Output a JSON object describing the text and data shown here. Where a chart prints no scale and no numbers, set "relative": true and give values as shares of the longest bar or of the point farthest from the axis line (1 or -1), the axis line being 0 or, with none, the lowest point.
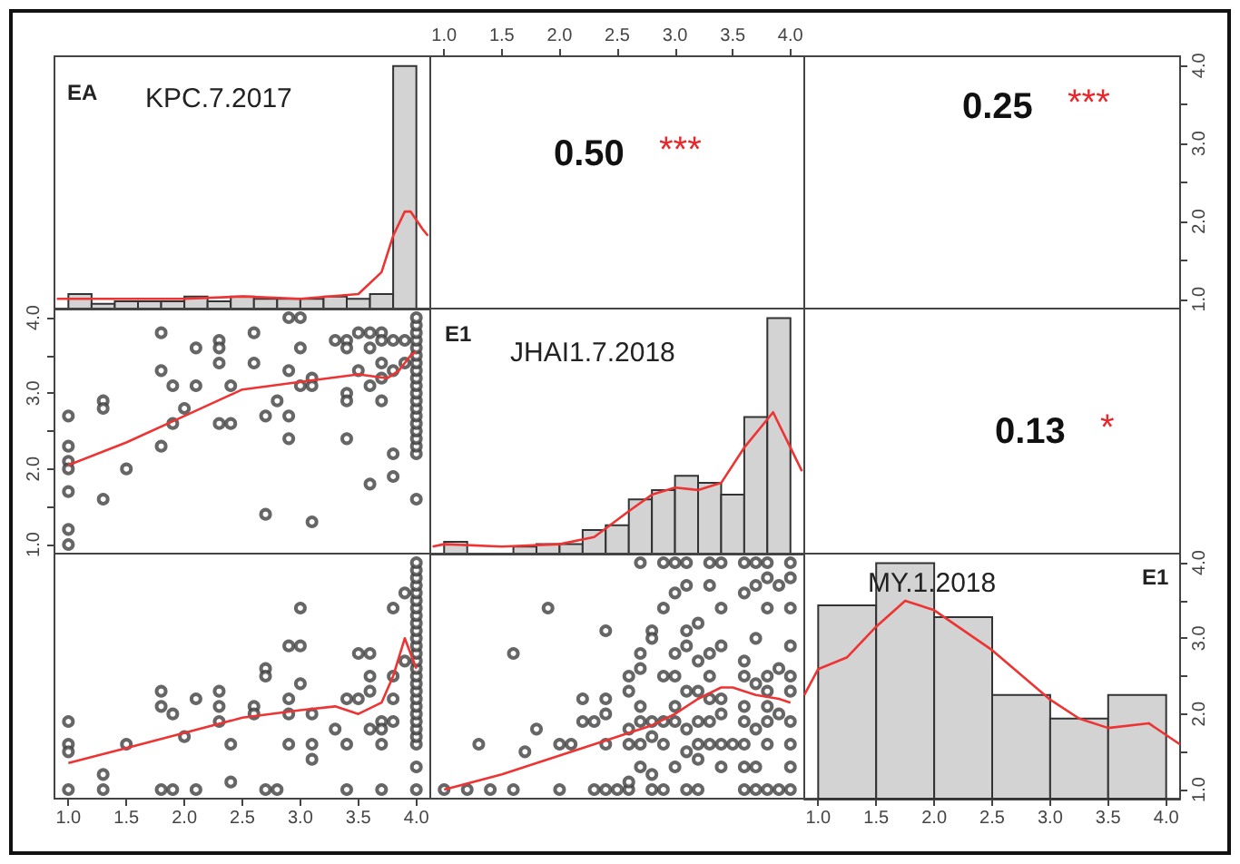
{
  "chart_data": [
    {
      "type": "histogram",
      "title": "KPC.7.2017",
      "subtitle": "EA",
      "relative": true,
      "xlim": [
        0.88,
        4.12
      ],
      "tick_labels": false,
      "series": [
        {
          "type": "histogram",
          "color": "#d3d3d3",
          "bins": [
            1,
            1.2,
            1.4,
            1.6,
            1.8,
            2,
            2.2,
            2.4,
            2.6,
            2.8,
            3,
            3.2,
            3.4,
            3.6,
            3.8,
            4
          ],
          "values": [
            0.06,
            0.02,
            0.03,
            0.03,
            0.03,
            0.05,
            0.03,
            0.05,
            0.04,
            0.04,
            0.04,
            0.05,
            0.04,
            0.06,
            1
          ]
        },
        {
          "type": "line",
          "color": "#ee3333",
          "x": [
            0.9,
            1.5,
            2,
            2.5,
            3,
            3.5,
            3.7,
            3.8,
            3.9,
            3.95,
            4.05,
            4.1
          ],
          "values": [
            0.04,
            0.04,
            0.04,
            0.05,
            0.04,
            0.06,
            0.15,
            0.3,
            0.4,
            0.4,
            0.33,
            0.3
          ]
        }
      ]
    },
    {
      "type": "scatter",
      "annotations": [
        "0.50",
        "***"
      ],
      "xlim": [
        0.88,
        4.12
      ],
      "xticks": [
        {
          "value": 1,
          "label": "1.0"
        },
        {
          "value": 1.5,
          "label": "1.5"
        },
        {
          "value": 2,
          "label": "2.0"
        },
        {
          "value": 2.5,
          "label": "2.5"
        },
        {
          "value": 3,
          "label": "3.0"
        },
        {
          "value": 3.5,
          "label": "3.5"
        },
        {
          "value": 4,
          "label": "4.0"
        }
      ],
      "ylim": [
        0.88,
        4.12
      ],
      "tick_labels": "x"
    },
    {
      "type": "scatter",
      "annotations": [
        "0.25",
        "***"
      ],
      "xlim": [
        0.88,
        4.12
      ],
      "ylim": [
        0.88,
        4.12
      ],
      "yticks": [
        {
          "value": 1,
          "label": "1.0"
        },
        {
          "value": 1.5,
          "label": null
        },
        {
          "value": 2,
          "label": "2.0"
        },
        {
          "value": 2.5,
          "label": null
        },
        {
          "value": 3,
          "label": "3.0"
        },
        {
          "value": 3.5,
          "label": null
        },
        {
          "value": 4,
          "label": "4.0"
        }
      ],
      "tick_labels": "y"
    },
    {
      "type": "scatter",
      "xlim": [
        0.88,
        4.12
      ],
      "ylim": [
        0.88,
        4.12
      ],
      "yticks": [
        {
          "value": 1,
          "label": "1.0"
        },
        {
          "value": 1.5,
          "label": null
        },
        {
          "value": 2,
          "label": "2.0"
        },
        {
          "value": 2.5,
          "label": null
        },
        {
          "value": 3,
          "label": "3.0"
        },
        {
          "value": 3.5,
          "label": null
        },
        {
          "value": 4,
          "label": "4.0"
        }
      ],
      "tick_labels": "y",
      "series": [
        {
          "type": "scatter",
          "marker": "circle",
          "color": "#404040",
          "x": [
            1,
            1,
            1,
            1,
            1,
            1,
            1,
            1.3,
            1.3,
            1.3,
            1.5,
            1.8,
            1.8,
            1.8,
            1.9,
            1.9,
            2,
            2.1,
            2.1,
            2.3,
            2.3,
            2.3,
            2.3,
            2.4,
            2.4,
            2.6,
            2.6,
            2.7,
            2.7,
            2.8,
            2.9,
            2.9,
            2.9,
            2.9,
            3,
            3,
            3,
            3.1,
            3.1,
            3.1,
            3.3,
            3.4,
            3.4,
            3.4,
            3.4,
            3.4,
            3.5,
            3.5,
            3.6,
            3.6,
            3.6,
            3.6,
            3.7,
            3.7,
            3.7,
            3.7,
            3.7,
            3.8,
            3.8,
            3.8,
            3.8,
            3.9,
            3.9,
            4,
            4,
            4,
            4,
            4,
            4,
            4,
            4,
            4,
            4,
            4,
            4,
            4,
            4,
            4,
            4,
            4,
            4,
            4,
            4
          ],
          "values": [
            2.7,
            2.3,
            2.1,
            2,
            1.7,
            1.2,
            1,
            2.9,
            2.8,
            1.6,
            2,
            3.8,
            3.3,
            2.3,
            3.1,
            2.6,
            2.8,
            3.6,
            3.1,
            3.7,
            3.6,
            3.4,
            2.6,
            3.1,
            2.6,
            3.8,
            3.4,
            2.7,
            1.4,
            2.9,
            4,
            3.3,
            2.7,
            2.4,
            4,
            3.6,
            3.1,
            3.2,
            3.1,
            1.3,
            3.7,
            3.7,
            3.6,
            3,
            2.9,
            2.4,
            3.8,
            3.3,
            3.8,
            3.6,
            3.1,
            1.8,
            3.8,
            3.7,
            3.4,
            3.2,
            2.9,
            3.7,
            3.3,
            2.2,
            1.9,
            3.7,
            3.4,
            1.6,
            2.2,
            2.3,
            2.4,
            2.5,
            2.6,
            2.7,
            2.8,
            2.9,
            3,
            3.1,
            3.2,
            3.3,
            3.4,
            3.5,
            3.6,
            3.7,
            3.8,
            3.9,
            4
          ]
        },
        {
          "type": "line",
          "color": "#ee3333",
          "x": [
            1,
            1.5,
            2,
            2.5,
            3,
            3.5,
            3.75,
            3.85,
            3.95,
            4
          ],
          "values": [
            2.05,
            2.35,
            2.7,
            3.05,
            3.15,
            3.25,
            3.2,
            3.3,
            3.5,
            3.55
          ]
        }
      ]
    },
    {
      "type": "histogram",
      "title": "JHAI1.7.2018",
      "subtitle": "E1",
      "relative": true,
      "xlim": [
        0.88,
        4.12
      ],
      "tick_labels": false,
      "series": [
        {
          "type": "histogram",
          "color": "#d3d3d3",
          "bins": [
            1,
            1.2,
            1.4,
            1.6,
            1.8,
            2,
            2.2,
            2.4,
            2.6,
            2.8,
            3,
            3.2,
            3.4,
            3.6,
            3.8,
            4
          ],
          "values": [
            0.05,
            0,
            0,
            0.03,
            0.04,
            0.04,
            0.1,
            0.12,
            0.23,
            0.27,
            0.33,
            0.3,
            0.25,
            0.58,
            1
          ]
        },
        {
          "type": "line",
          "color": "#ee3333",
          "x": [
            0.9,
            1,
            1.5,
            2,
            2.3,
            2.6,
            2.8,
            3,
            3.2,
            3.4,
            3.6,
            3.85,
            4,
            4.1
          ],
          "values": [
            0.03,
            0.04,
            0.03,
            0.04,
            0.07,
            0.18,
            0.25,
            0.28,
            0.27,
            0.3,
            0.45,
            0.6,
            0.45,
            0.35
          ]
        }
      ]
    },
    {
      "type": "other",
      "annotations": [
        "0.13",
        "*"
      ]
    },
    {
      "type": "scatter",
      "xlim": [
        0.88,
        4.12
      ],
      "ylim": [
        0.88,
        4.12
      ],
      "xticks": [
        {
          "value": 1,
          "label": "1.0"
        },
        {
          "value": 1.5,
          "label": "1.5"
        },
        {
          "value": 2,
          "label": "2.0"
        },
        {
          "value": 2.5,
          "label": "2.5"
        },
        {
          "value": 3,
          "label": "3.0"
        },
        {
          "value": 3.5,
          "label": "3.5"
        },
        {
          "value": 4,
          "label": "4.0"
        }
      ],
      "tick_labels": "x",
      "series": [
        {
          "type": "scatter",
          "marker": "circle",
          "color": "#404040",
          "x": [
            1,
            1,
            1,
            1,
            1.3,
            1.3,
            1.5,
            1.8,
            1.8,
            1.8,
            1.9,
            1.9,
            2,
            2.1,
            2.1,
            2.3,
            2.3,
            2.3,
            2.4,
            2.4,
            2.6,
            2.6,
            2.7,
            2.7,
            2.7,
            2.8,
            2.9,
            2.9,
            2.9,
            2.9,
            3,
            3,
            3,
            3.1,
            3.1,
            3.1,
            3.3,
            3.4,
            3.4,
            3.4,
            3.5,
            3.5,
            3.6,
            3.6,
            3.6,
            3.6,
            3.7,
            3.7,
            3.7,
            3.7,
            3.8,
            3.8,
            3.8,
            3.8,
            3.9,
            3.9,
            4,
            4,
            4,
            4,
            4,
            4,
            4,
            4,
            4,
            4,
            4,
            4,
            4,
            4,
            4,
            4,
            4,
            4,
            4,
            4,
            4,
            4,
            4,
            4,
            4,
            4,
            4
          ],
          "values": [
            1.9,
            1.6,
            1.5,
            1,
            1.2,
            1,
            1.6,
            2.3,
            2.1,
            1,
            2,
            1,
            1.7,
            2.2,
            1,
            2.3,
            2.1,
            1.9,
            1.6,
            1.1,
            2.1,
            2,
            2.6,
            2.5,
            1,
            1,
            2.9,
            2.2,
            2,
            1.6,
            3.4,
            2.9,
            2.4,
            2,
            1.6,
            1.4,
            1.8,
            2.2,
            1.6,
            1,
            2.8,
            2.2,
            2.8,
            2.5,
            2.3,
            1.8,
            1.9,
            1.8,
            1.6,
            1,
            3.4,
            2.5,
            2.2,
            1.9,
            3.6,
            2.7,
            1,
            1.3,
            1.6,
            1.7,
            1.8,
            1.9,
            2,
            2.1,
            2.2,
            2.3,
            2.4,
            2.5,
            2.6,
            2.7,
            2.8,
            2.9,
            3,
            3.1,
            3.2,
            3.3,
            3.4,
            3.5,
            3.6,
            3.7,
            3.8,
            3.9,
            4
          ]
        },
        {
          "type": "line",
          "color": "#ee3333",
          "x": [
            1,
            1.5,
            2,
            2.5,
            3,
            3.3,
            3.5,
            3.7,
            3.8,
            3.9,
            4
          ],
          "values": [
            1.35,
            1.55,
            1.75,
            1.95,
            2.05,
            2.1,
            2,
            2.15,
            2.5,
            3,
            2.6
          ]
        }
      ]
    },
    {
      "type": "scatter",
      "xlim": [
        0.88,
        4.12
      ],
      "ylim": [
        0.88,
        4.12
      ],
      "tick_labels": false,
      "series": [
        {
          "type": "scatter",
          "marker": "circle",
          "color": "#404040",
          "x": [
            1,
            1.2,
            1.3,
            1.4,
            1.6,
            1.6,
            1.7,
            1.8,
            1.9,
            2,
            2,
            2.1,
            2.2,
            2.2,
            2.3,
            2.3,
            2.4,
            2.4,
            2.4,
            2.4,
            2.4,
            2.5,
            2.6,
            2.6,
            2.6,
            2.6,
            2.6,
            2.6,
            2.7,
            2.7,
            2.7,
            2.7,
            2.7,
            2.7,
            2.7,
            2.8,
            2.8,
            2.8,
            2.8,
            2.8,
            2.8,
            2.9,
            2.9,
            2.9,
            2.9,
            2.9,
            2.9,
            3,
            3,
            3,
            3,
            3,
            3,
            3,
            3.1,
            3.1,
            3.1,
            3.1,
            3.1,
            3.1,
            3.1,
            3.1,
            3.2,
            3.2,
            3.2,
            3.2,
            3.2,
            3.2,
            3.2,
            3.3,
            3.3,
            3.3,
            3.3,
            3.3,
            3.3,
            3.3,
            3.4,
            3.4,
            3.4,
            3.4,
            3.4,
            3.4,
            3.4,
            3.5,
            3.6,
            3.6,
            3.6,
            3.6,
            3.6,
            3.6,
            3.6,
            3.6,
            3.6,
            3.7,
            3.7,
            3.7,
            3.7,
            3.7,
            3.7,
            3.7,
            3.8,
            3.8,
            3.8,
            3.8,
            3.8,
            3.8,
            3.8,
            3.8,
            3.8,
            3.9,
            3.9,
            3.9,
            3.9,
            4,
            4,
            4,
            4,
            4,
            4,
            4,
            4,
            4,
            4
          ],
          "values": [
            1,
            1,
            1.6,
            1,
            1,
            2.8,
            1.5,
            1.8,
            3.4,
            1,
            1.6,
            1.6,
            2.2,
            1.9,
            1,
            1.9,
            3.1,
            2.2,
            2,
            1.6,
            1,
            1,
            1,
            1.1,
            1.6,
            1.8,
            2.3,
            2.5,
            4,
            2.8,
            2.6,
            2.1,
            1.9,
            1.6,
            1.3,
            1,
            1.2,
            1.7,
            1.9,
            3.1,
            3,
            4,
            3.4,
            2.5,
            1.9,
            1.6,
            1,
            4,
            3.6,
            2.8,
            2.5,
            2.1,
            1.9,
            1.3,
            4,
            3.7,
            3.1,
            2.9,
            2.3,
            1.8,
            1.5,
            1,
            3.2,
            2.7,
            2.3,
            1.9,
            1.6,
            1.4,
            1,
            4,
            3.7,
            2.8,
            2.5,
            2.2,
            1.9,
            1.6,
            4,
            3.4,
            2.9,
            2.2,
            2,
            1.6,
            1.3,
            1.6,
            4,
            3.6,
            2.7,
            2.5,
            2.1,
            1.9,
            1.6,
            1.3,
            1,
            4,
            3.7,
            3,
            2.4,
            1.8,
            1.3,
            1,
            4,
            3.8,
            3.4,
            2.5,
            2.3,
            2.1,
            1.9,
            1.6,
            1,
            3.7,
            2.6,
            2,
            1,
            4,
            3.8,
            3.4,
            2.9,
            2.5,
            2.3,
            1.9,
            1.6,
            1.3,
            1
          ]
        },
        {
          "type": "line",
          "color": "#ee3333",
          "x": [
            1,
            1.5,
            2,
            2.5,
            2.8,
            3,
            3.2,
            3.4,
            3.5,
            3.7,
            3.9,
            4
          ],
          "values": [
            1,
            1.2,
            1.45,
            1.7,
            1.85,
            2,
            2.2,
            2.35,
            2.35,
            2.25,
            2.2,
            2.15
          ]
        }
      ]
    },
    {
      "type": "histogram",
      "title": "MY.1.2018",
      "subtitle": "E1",
      "relative": true,
      "xlim": [
        0.88,
        4.12
      ],
      "xticks": [
        {
          "value": 1,
          "label": "1.0"
        },
        {
          "value": 1.5,
          "label": "1.5"
        },
        {
          "value": 2,
          "label": "2.0"
        },
        {
          "value": 2.5,
          "label": "2.5"
        },
        {
          "value": 3,
          "label": "3.0"
        },
        {
          "value": 3.5,
          "label": "3.5"
        },
        {
          "value": 4,
          "label": "4.0"
        }
      ],
      "y2lim": [
        0.88,
        4.12
      ],
      "y2ticks": [
        {
          "value": 1,
          "label": "1.0"
        },
        {
          "value": 1.5,
          "label": null
        },
        {
          "value": 2,
          "label": "2.0"
        },
        {
          "value": 2.5,
          "label": null
        },
        {
          "value": 3,
          "label": "3.0"
        },
        {
          "value": 3.5,
          "label": null
        },
        {
          "value": 4,
          "label": "4.0"
        }
      ],
      "series": [
        {
          "type": "histogram",
          "color": "#d3d3d3",
          "bins": [
            1,
            1.5,
            2,
            2.5,
            3,
            3.5,
            4
          ],
          "values": [
            0.82,
            1,
            0.77,
            0.44,
            0.34,
            0.44
          ]
        },
        {
          "type": "line",
          "color": "#ee3333",
          "x": [
            0.88,
            1,
            1.25,
            1.5,
            1.75,
            2,
            2.5,
            3,
            3.25,
            3.5,
            3.85,
            4.12
          ],
          "values": [
            0.44,
            0.55,
            0.6,
            0.73,
            0.84,
            0.8,
            0.63,
            0.42,
            0.34,
            0.3,
            0.32,
            0.23
          ]
        }
      ]
    }
  ]
}
